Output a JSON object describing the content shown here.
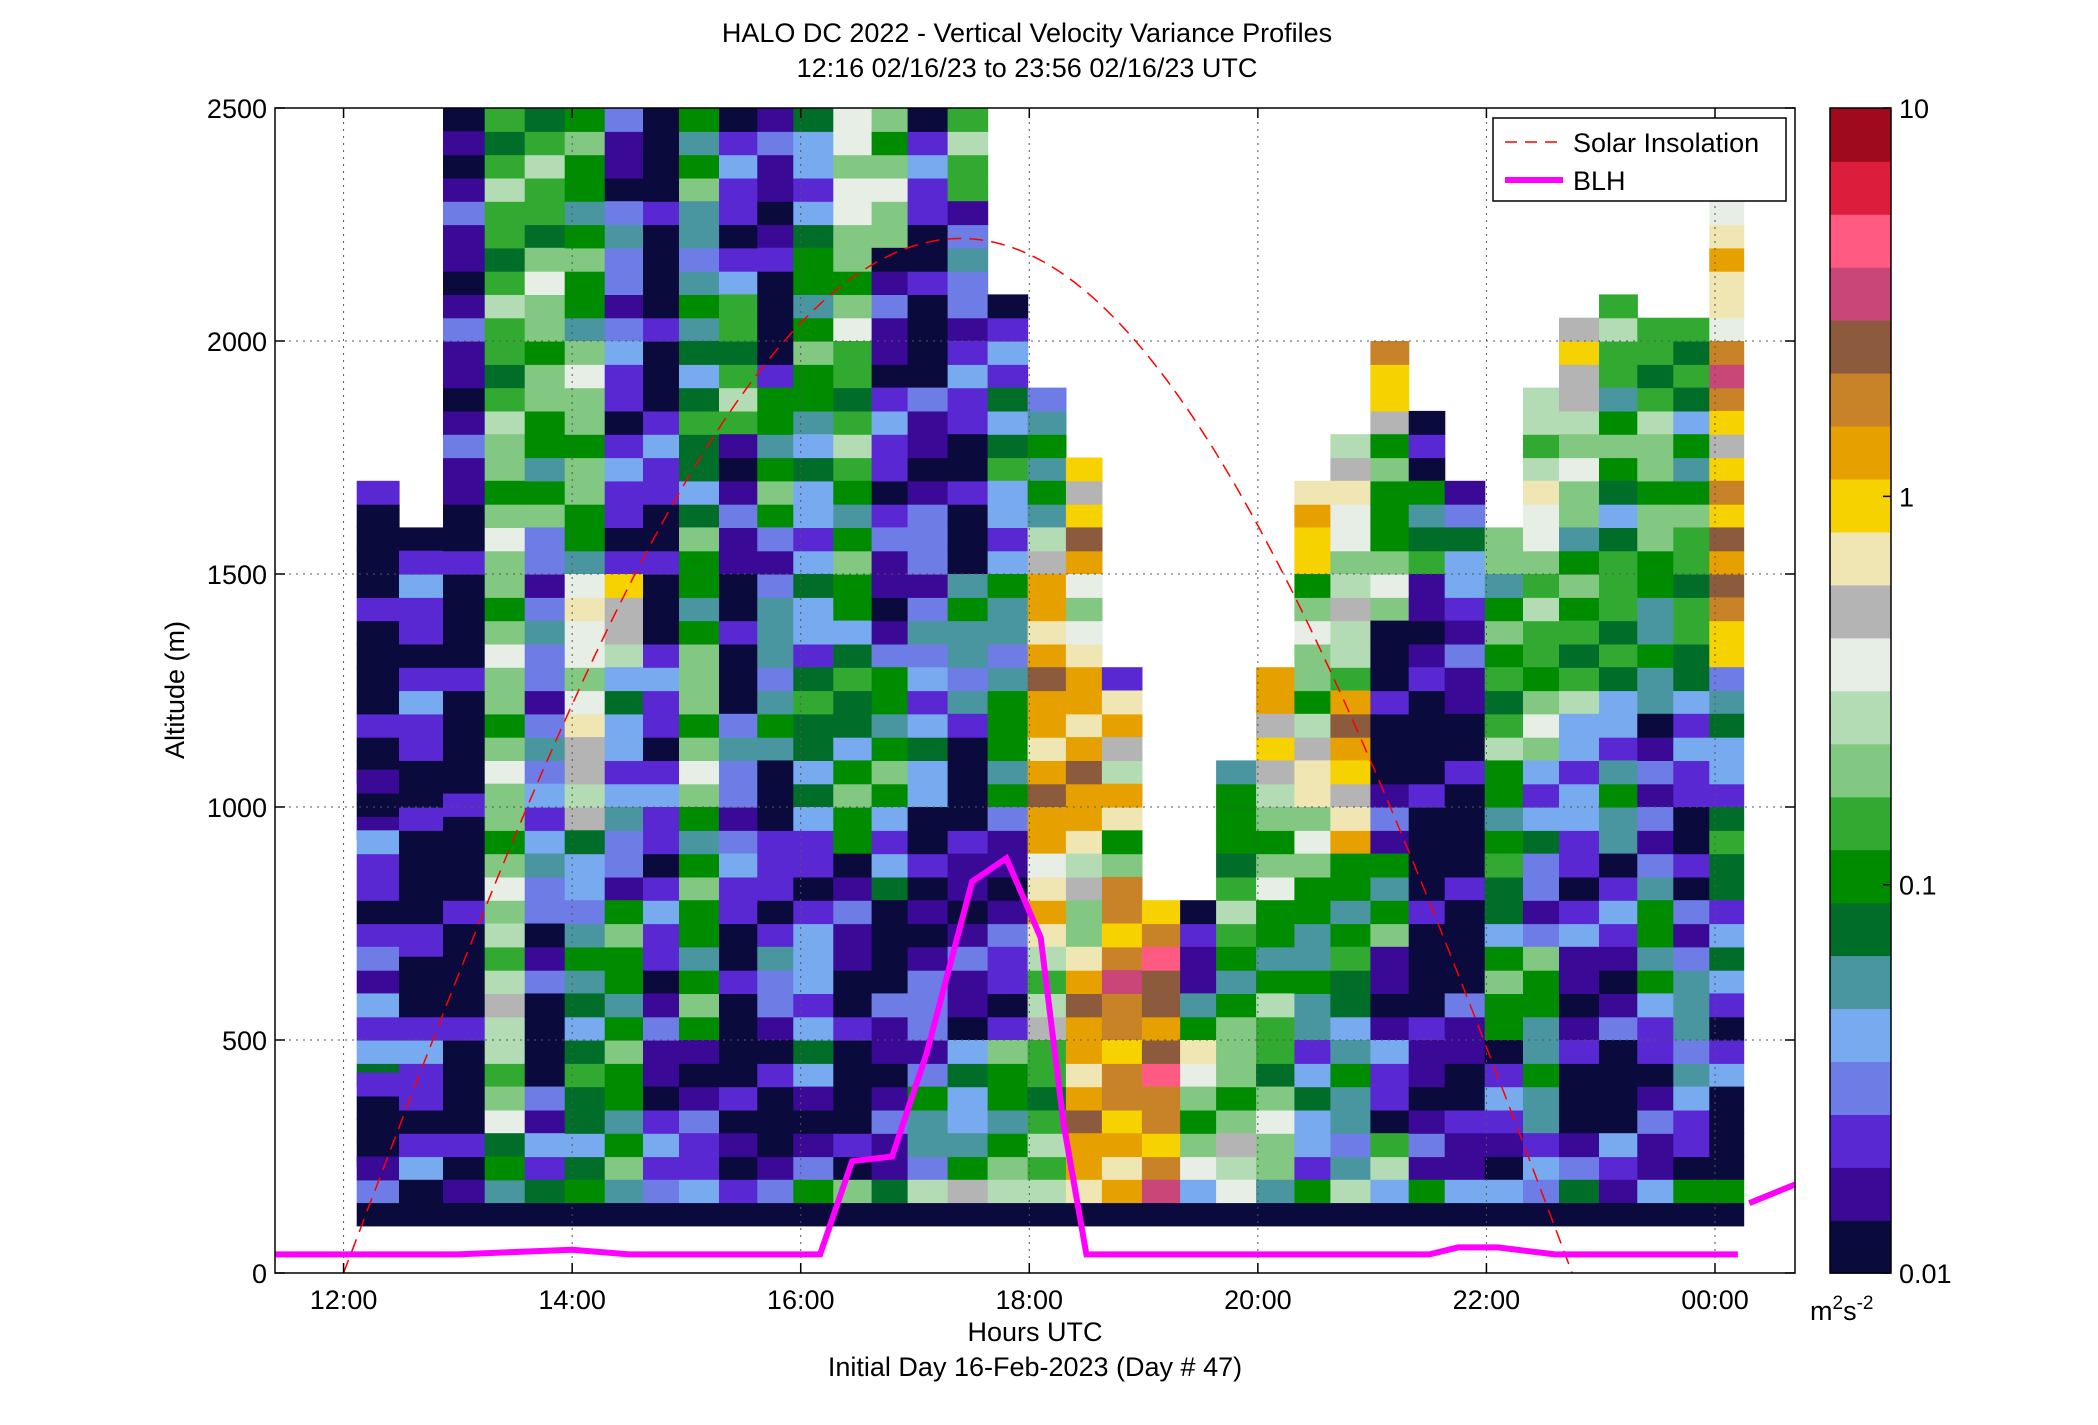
{
  "chart_data": {
    "type": "heatmap",
    "title": "HALO DC 2022 - Vertical Velocity Variance Profiles",
    "subtitle": "12:16 02/16/23 to 23:56 02/16/23  UTC",
    "xlabel": "Hours UTC",
    "xlabel2": "Initial Day 16-Feb-2023 (Day # 47)",
    "ylabel": "Altitude (m)",
    "x_range_hours": [
      11.4,
      24.7
    ],
    "ylim": [
      0,
      2500
    ],
    "x_ticks": [
      {
        "value": 12,
        "label": "12:00"
      },
      {
        "value": 14,
        "label": "14:00"
      },
      {
        "value": 16,
        "label": "16:00"
      },
      {
        "value": 18,
        "label": "18:00"
      },
      {
        "value": 20,
        "label": "20:00"
      },
      {
        "value": 22,
        "label": "22:00"
      },
      {
        "value": 24,
        "label": "00:00"
      }
    ],
    "y_ticks": [
      {
        "value": 0,
        "label": "0"
      },
      {
        "value": 500,
        "label": "500"
      },
      {
        "value": 1000,
        "label": "1000"
      },
      {
        "value": 1500,
        "label": "1500"
      },
      {
        "value": 2000,
        "label": "2000"
      },
      {
        "value": 2500,
        "label": "2500"
      }
    ],
    "grid": true,
    "legend_position": "top-right",
    "colorbar": {
      "scale": "log",
      "range": [
        0.01,
        10
      ],
      "ticks": [
        {
          "value": 0.01,
          "label": "0.01"
        },
        {
          "value": 0.1,
          "label": "0.1"
        },
        {
          "value": 1,
          "label": "1"
        },
        {
          "value": 10,
          "label": "10"
        }
      ],
      "unit_base": "m",
      "unit_sup1": "2",
      "unit_mid": "s",
      "unit_sup2": "-2"
    },
    "colormap": [
      "#0a0a3c",
      "#3a0a96",
      "#5a28d2",
      "#6e7ce6",
      "#78aaf0",
      "#4a96a0",
      "#006e28",
      "#008c00",
      "#32aa32",
      "#82c882",
      "#b4dcb4",
      "#e6eee6",
      "#b4b4b4",
      "#f0e6b4",
      "#f5d200",
      "#e6a000",
      "#c88228",
      "#8c5a3c",
      "#c84678",
      "#ff5a82",
      "#dc1e3c",
      "#a00a1e"
    ],
    "profile_times_hours": [
      12.3,
      12.67,
      13.07,
      13.4,
      13.77,
      14.1,
      14.47,
      14.77,
      15.1,
      15.47,
      15.77,
      16.1,
      16.47,
      16.77,
      17.1,
      17.47,
      17.8,
      18.17,
      18.47,
      18.8,
      19.17,
      19.47,
      19.8,
      20.17,
      20.47,
      20.8,
      21.17,
      21.47,
      21.8,
      22.17,
      22.47,
      22.8,
      23.17,
      23.47,
      23.8,
      24.1
    ],
    "range_gate_m": 50,
    "lowest_gate_m": 100,
    "series": [
      {
        "name": "Solar Insolation",
        "style": "dashed",
        "color": "#ff0000",
        "peak_time_hours": 17.4,
        "peak_altitude_m": 2220,
        "zero_crossings_hours": [
          12.0,
          22.75
        ]
      },
      {
        "name": "BLH",
        "style": "solid",
        "color": "#ff00ff",
        "x": [
          11.4,
          12.5,
          13.0,
          13.5,
          14.0,
          14.5,
          15.0,
          15.5,
          16.0,
          16.17,
          16.45,
          16.8,
          17.1,
          17.5,
          17.8,
          18.1,
          18.3,
          18.5,
          19.0,
          20.0,
          21.0,
          21.5,
          21.75,
          22.1,
          22.6,
          23.0,
          23.5,
          24.0,
          24.2
        ],
        "y": [
          40,
          40,
          40,
          45,
          50,
          40,
          40,
          40,
          40,
          40,
          240,
          250,
          470,
          840,
          890,
          720,
          320,
          40,
          40,
          40,
          40,
          40,
          55,
          55,
          40,
          40,
          40,
          40,
          40
        ]
      },
      {
        "name": "BLH_late",
        "x": [
          24.3,
          24.7
        ],
        "y": [
          150,
          190
        ]
      }
    ],
    "cells": [
      {
        "profile": 0,
        "tops_m": [
          1700,
          1050,
          930,
          700,
          600,
          400,
          230
        ],
        "classes": [
          0,
          1,
          2,
          1,
          4,
          0,
          1
        ]
      },
      {
        "profile": 1,
        "tops_m": [
          1600,
          1550,
          1050,
          700,
          580,
          200
        ],
        "classes": [
          0,
          2,
          0,
          0,
          2,
          0
        ]
      },
      {
        "profile": 2,
        "tops_m": [
          2500,
          2450,
          1600,
          1050,
          930,
          200
        ],
        "classes": [
          0,
          1,
          0,
          0,
          0,
          1
        ]
      },
      {
        "profile": 3,
        "tops_m": [
          2500,
          1800,
          1700,
          1050,
          750,
          400,
          300,
          250
        ],
        "classes": [
          8,
          9,
          9,
          9,
          10,
          9,
          6,
          7
        ]
      },
      {
        "profile": 4,
        "tops_m": [
          2500,
          2200,
          1900,
          1600,
          1400,
          1050,
          900,
          750,
          600,
          400,
          300,
          200
        ],
        "classes": [
          8,
          9,
          7,
          3,
          3,
          4,
          3,
          1,
          0,
          1,
          4,
          6
        ]
      },
      {
        "profile": 5,
        "tops_m": [
          2500,
          2000,
          1700,
          1500,
          1150,
          950,
          800,
          600,
          200
        ],
        "classes": [
          7,
          9,
          7,
          11,
          12,
          4,
          5,
          6,
          5
        ]
      },
      {
        "profile": 6,
        "tops_m": [
          2500,
          2300,
          2000,
          1500,
          1300,
          1000,
          800,
          200
        ],
        "classes": [
          1,
          3,
          2,
          12,
          4,
          3,
          7,
          5
        ]
      },
      {
        "profile": 7,
        "tops_m": [
          2500,
          2200,
          1900,
          1600,
          1400,
          1000,
          600,
          400,
          200
        ],
        "classes": [
          0,
          0,
          2,
          0,
          2,
          2,
          1,
          2,
          3
        ]
      },
      {
        "profile": 8,
        "tops_m": [
          2500,
          2300,
          2000,
          1600,
          1300,
          1000,
          800,
          500,
          300,
          200
        ],
        "classes": [
          7,
          5,
          6,
          7,
          9,
          7,
          7,
          1,
          2,
          6
        ]
      },
      {
        "profile": 9,
        "tops_m": [
          2500,
          2100,
          1800,
          1500,
          1200,
          900,
          700,
          500,
          300,
          200
        ],
        "classes": [
          2,
          8,
          1,
          0,
          3,
          2,
          0,
          0,
          1,
          2
        ]
      },
      {
        "profile": 10,
        "tops_m": [
          2500,
          2200,
          1900,
          1600,
          1400,
          1100,
          900,
          700,
          500,
          300,
          200
        ],
        "classes": [
          1,
          0,
          7,
          3,
          5,
          0,
          2,
          3,
          0,
          1,
          1
        ]
      },
      {
        "profile": 11,
        "tops_m": [
          2500,
          2200,
          1800,
          1500,
          1300,
          1000,
          700,
          400,
          200
        ],
        "classes": [
          4,
          7,
          4,
          4,
          6,
          2,
          4,
          1,
          7
        ]
      },
      {
        "profile": 12,
        "tops_m": [
          2500,
          2300,
          2000,
          1700,
          1400,
          1100,
          900,
          600,
          400,
          200
        ],
        "classes": [
          11,
          9,
          8,
          7,
          6,
          7,
          1,
          0,
          0,
          9
        ]
      },
      {
        "profile": 13,
        "tops_m": [
          2500,
          2200,
          1900,
          1600,
          1300,
          1000,
          800,
          600,
          200
        ],
        "classes": [
          9,
          1,
          2,
          1,
          7,
          4,
          0,
          1,
          8
        ]
      },
      {
        "profile": 14,
        "tops_m": [
          2500,
          2200,
          1900,
          1600,
          1300,
          1000,
          800,
          600,
          400,
          200
        ],
        "classes": [
          2,
          0,
          1,
          3,
          4,
          0,
          1,
          3,
          5,
          10
        ]
      },
      {
        "profile": 15,
        "tops_m": [
          2500,
          2300,
          2000,
          1800,
          1500,
          1200,
          900,
          700,
          500,
          300,
          200
        ],
        "classes": [
          8,
          3,
          2,
          0,
          5,
          0,
          1,
          1,
          4,
          7,
          10
        ]
      },
      {
        "profile": 16,
        "tops_m": [
          2100,
          1900,
          1700,
          1500,
          1200,
          1000,
          700,
          500,
          200
        ],
        "classes": [
          2,
          6,
          4,
          5,
          7,
          1,
          2,
          7,
          10
        ]
      },
      {
        "profile": 17,
        "tops_m": [
          1900,
          1700,
          1600,
          1500,
          1300,
          1000,
          900,
          700,
          500,
          200
        ],
        "classes": [
          5,
          7,
          10,
          15,
          15,
          15,
          13,
          10,
          8,
          10
        ]
      },
      {
        "profile": 18,
        "tops_m": [
          1750,
          1600,
          1500,
          1300,
          1150,
          1000,
          900,
          800,
          700,
          500,
          300,
          200
        ],
        "classes": [
          14,
          15,
          11,
          15,
          15,
          15,
          10,
          9,
          15,
          15,
          15,
          15
        ]
      },
      {
        "profile": 19,
        "tops_m": [
          1300,
          1250,
          1150,
          1050,
          950,
          850,
          750,
          650,
          500,
          400,
          300,
          200
        ],
        "classes": [
          2,
          15,
          10,
          15,
          7,
          16,
          16,
          16,
          16,
          14,
          15,
          15
        ]
      },
      {
        "profile": 20,
        "tops_m": [
          800,
          700,
          600,
          400,
          200
        ],
        "classes": [
          16,
          17,
          17,
          16,
          16
        ]
      },
      {
        "profile": 21,
        "tops_m": [
          800,
          700,
          600,
          500,
          400,
          200
        ],
        "classes": [
          0,
          1,
          7,
          11,
          9,
          4
        ]
      },
      {
        "profile": 22,
        "tops_m": [
          1100,
          1000,
          900,
          700,
          500,
          300,
          200
        ],
        "classes": [
          5,
          7,
          8,
          7,
          9,
          10,
          11
        ]
      },
      {
        "profile": 23,
        "tops_m": [
          1300,
          1200,
          1100,
          1000,
          800,
          600,
          400,
          200
        ],
        "classes": [
          15,
          14,
          10,
          9,
          7,
          8,
          9,
          7
        ]
      },
      {
        "profile": 24,
        "tops_m": [
          1700,
          1600,
          1500,
          1200,
          1100,
          1000,
          900,
          700,
          500,
          200
        ],
        "classes": [
          13,
          14,
          9,
          10,
          13,
          11,
          7,
          5,
          4,
          7
        ]
      },
      {
        "profile": 25,
        "tops_m": [
          1800,
          1700,
          1500,
          1250,
          1100,
          1000,
          900,
          700,
          500,
          200
        ],
        "classes": [
          12,
          11,
          10,
          15,
          14,
          13,
          7,
          6,
          5,
          8
        ]
      },
      {
        "profile": 26,
        "tops_m": [
          2000,
          1800,
          1600,
          1400,
          1100,
          900,
          700,
          500,
          300,
          200
        ],
        "classes": [
          14,
          7,
          9,
          0,
          1,
          7,
          1,
          2,
          8,
          4
        ]
      },
      {
        "profile": 27,
        "tops_m": [
          1850,
          1700,
          1600,
          1500,
          1300,
          1100,
          900,
          700,
          500,
          200
        ],
        "classes": [
          0,
          7,
          6,
          1,
          0,
          0,
          0,
          0,
          1,
          7
        ]
      },
      {
        "profile": 28,
        "tops_m": [
          1700,
          1600,
          1400,
          1200,
          1000,
          800,
          600,
          400,
          300,
          200
        ],
        "classes": [
          3,
          4,
          1,
          0,
          0,
          0,
          1,
          0,
          1,
          6
        ]
      },
      {
        "profile": 29,
        "tops_m": [
          1600,
          1500,
          1300,
          1100,
          900,
          700,
          500,
          300,
          200
        ],
        "classes": [
          9,
          7,
          8,
          7,
          6,
          7,
          2,
          1,
          4
        ]
      },
      {
        "profile": 30,
        "tops_m": [
          1900,
          1700,
          1500,
          1300,
          1100,
          900,
          700,
          500,
          300,
          200
        ],
        "classes": [
          10,
          11,
          8,
          9,
          4,
          3,
          7,
          5,
          4,
          1
        ]
      },
      {
        "profile": 31,
        "tops_m": [
          2050,
          1800,
          1600,
          1400,
          1200,
          1000,
          700,
          500,
          300,
          200
        ],
        "classes": [
          12,
          9,
          7,
          8,
          4,
          2,
          1,
          0,
          1,
          6
        ]
      },
      {
        "profile": 32,
        "tops_m": [
          2100,
          1900,
          1700,
          1500,
          1300,
          1100,
          900,
          700,
          500,
          300,
          200
        ],
        "classes": [
          8,
          7,
          6,
          8,
          4,
          5,
          2,
          1,
          0,
          2,
          1
        ]
      },
      {
        "profile": 33,
        "tops_m": [
          2050,
          1800,
          1600,
          1400,
          1200,
          1000,
          800,
          600,
          400,
          200
        ],
        "classes": [
          8,
          9,
          7,
          5,
          1,
          3,
          7,
          2,
          1,
          6
        ]
      },
      {
        "profile": 34,
        "tops_m": [
          2050,
          1900,
          1800,
          1600,
          1400,
          1200,
          1000,
          800,
          600,
          400,
          200
        ],
        "classes": [
          8,
          4,
          7,
          8,
          6,
          2,
          0,
          3,
          5,
          2,
          7
        ]
      },
      {
        "profile": 35,
        "tops_m": [
          2300,
          2000,
          1850,
          1700,
          1600,
          1450,
          1300,
          1200,
          1000,
          800,
          600,
          400,
          200
        ],
        "classes": [
          13,
          16,
          14,
          14,
          17,
          14,
          5,
          4,
          6,
          4,
          2,
          0,
          5
        ]
      }
    ]
  },
  "legend": [
    {
      "label": "Solar Insolation",
      "color": "#ff0000",
      "style": "dashed"
    },
    {
      "label": "BLH",
      "color": "#ff00ff",
      "style": "solid"
    }
  ]
}
